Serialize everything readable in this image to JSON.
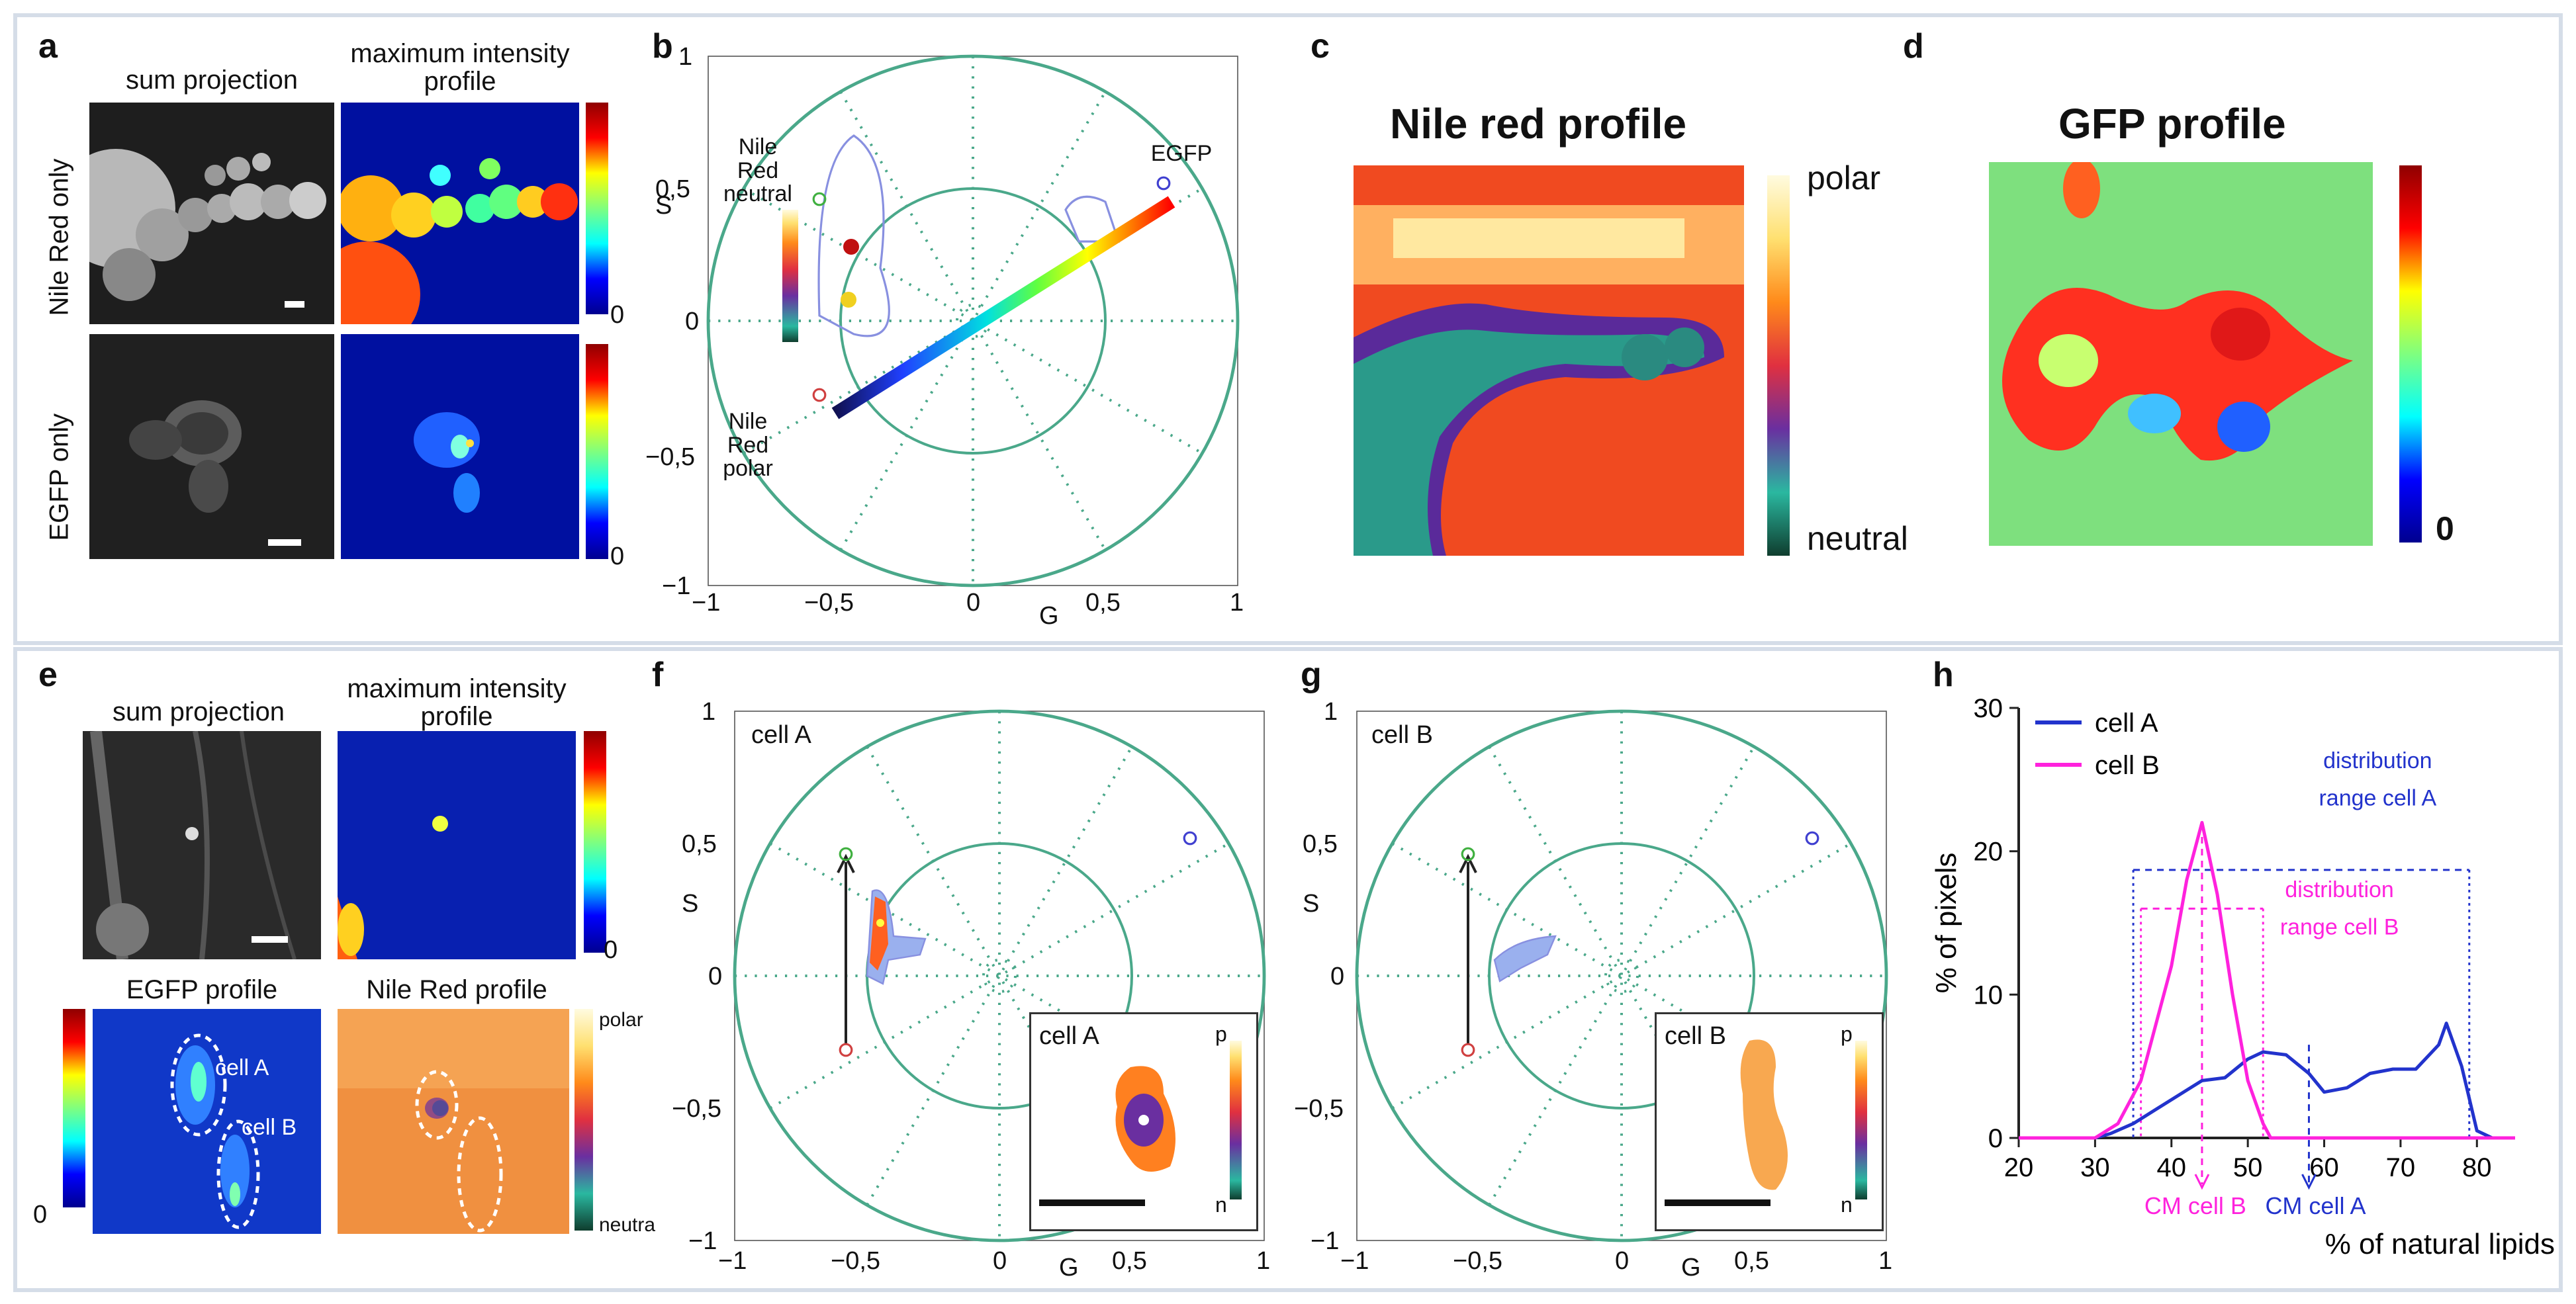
{
  "panels": {
    "a": {
      "label": "a",
      "col1": "sum projection",
      "col2": "maximum intensity profile",
      "row1": "Nile Red only",
      "row2": "EGFP only",
      "cbar_zero": "0"
    },
    "b": {
      "label": "b",
      "nile_red_neutral": "Nile Red neutral",
      "nile_red_polar": "Nile Red polar",
      "egfp": "EGFP",
      "xlabel": "G",
      "ylabel": "S",
      "xticks": [
        "−1",
        "−0,5",
        "0",
        "0,5",
        "1"
      ],
      "yticks": [
        "1",
        "0,5",
        "0",
        "−0,5",
        "−1"
      ]
    },
    "c": {
      "label": "c",
      "title": "Nile red profile",
      "cbar_top": "polar",
      "cbar_bottom": "neutral"
    },
    "d": {
      "label": "d",
      "title": "GFP profile",
      "cbar_bottom": "0"
    },
    "e": {
      "label": "e",
      "col1": "sum projection",
      "col2": "maximum intensity profile",
      "row2_col1": "EGFP profile",
      "row2_col2": "Nile Red profile",
      "cell_a": "cell A",
      "cell_b": "cell B",
      "cbar_zero": "0",
      "cbar_zero2": "0",
      "polar": "polar",
      "neutral": "neutra"
    },
    "f": {
      "label": "f",
      "title": "cell A",
      "inset_title": "cell A",
      "inset_p": "p",
      "inset_n": "n",
      "xlabel": "G",
      "ylabel": "S",
      "xticks": [
        "−1",
        "−0,5",
        "0",
        "0,5",
        "1"
      ],
      "yticks": [
        "1",
        "0,5",
        "0",
        "−0,5",
        "−1"
      ]
    },
    "g": {
      "label": "g",
      "title": "cell B",
      "inset_title": "cell B",
      "inset_p": "p",
      "inset_n": "n",
      "xlabel": "G",
      "ylabel": "S",
      "xticks": [
        "−1",
        "−0,5",
        "0",
        "0,5",
        "1"
      ],
      "yticks": [
        "1",
        "0,5",
        "0",
        "−0,5",
        "−1"
      ]
    },
    "h": {
      "label": "h",
      "dist_a": "distribution range cell A",
      "dist_b": "distribution range cell B",
      "cm_a": "CM cell A",
      "cm_b": "CM cell B"
    }
  },
  "colors": {
    "phasor_circle": "#4aa88a",
    "cell_a": "#2233cc",
    "cell_b": "#ff22dd",
    "frame": "#d5dde8"
  },
  "chart_data": {
    "type": "line",
    "xlabel": "% of natural lipids",
    "ylabel": "% of pixels",
    "xlim": [
      20,
      85
    ],
    "ylim": [
      0,
      30
    ],
    "xticks": [
      20,
      30,
      40,
      50,
      60,
      70,
      80
    ],
    "yticks": [
      0,
      10,
      20,
      30
    ],
    "legend_position": "top-left",
    "series": [
      {
        "name": "cell A",
        "color": "#2233cc",
        "x": [
          20,
          30,
          32,
          35,
          38,
          41,
          44,
          47,
          50,
          52,
          55,
          58,
          60,
          63,
          66,
          69,
          72,
          75,
          76,
          78,
          80,
          82,
          85
        ],
        "y": [
          0,
          0,
          0.3,
          1,
          2,
          3,
          4,
          4.2,
          5.5,
          6,
          5.8,
          4.5,
          3.2,
          3.5,
          4.5,
          4.8,
          4.8,
          6.5,
          8,
          5,
          0.5,
          0,
          0
        ]
      },
      {
        "name": "cell B",
        "color": "#ff22dd",
        "x": [
          20,
          30,
          33,
          36,
          38,
          40,
          42,
          44,
          46,
          48,
          50,
          52,
          53,
          55,
          85
        ],
        "y": [
          0,
          0,
          1,
          4,
          8,
          12,
          18,
          22,
          17,
          10,
          4,
          1,
          0,
          0,
          0
        ]
      }
    ],
    "annotations": [
      {
        "text": "distribution range cell A",
        "x_from": 35,
        "x_to": 79
      },
      {
        "text": "distribution range cell B",
        "x_from": 36,
        "x_to": 52
      },
      {
        "text": "CM cell A",
        "x": 58
      },
      {
        "text": "CM cell B",
        "x": 44
      }
    ]
  }
}
